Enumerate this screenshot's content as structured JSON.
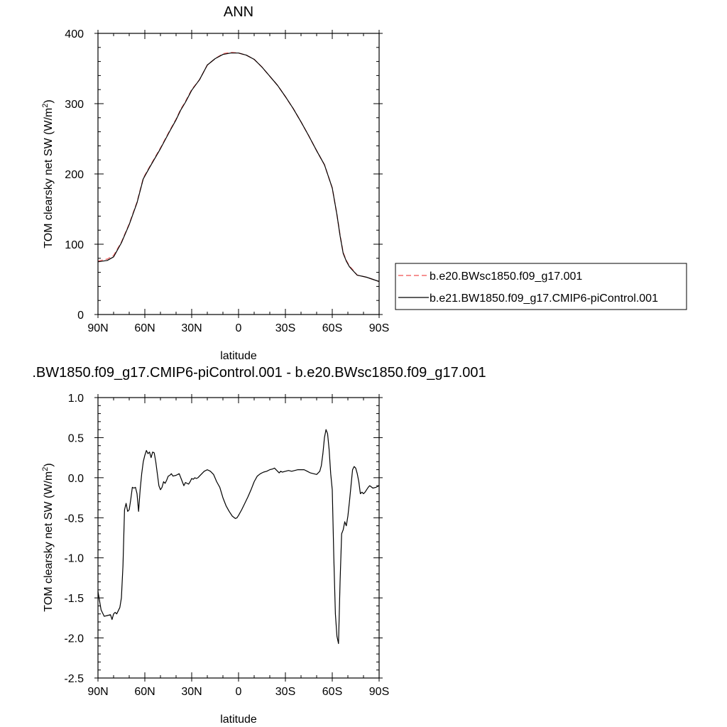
{
  "colors": {
    "series_a": "#f46d6d",
    "series_b": "#000000",
    "frame": "#000000"
  },
  "chart_data": [
    {
      "type": "line",
      "title": "ANN",
      "xlabel": "latitude",
      "ylabel_main": "TOM clearsky net SW (W/m",
      "ylabel_sup": "2",
      "ylabel_end": ")",
      "xlim": [
        90,
        -90
      ],
      "ylim": [
        0,
        400
      ],
      "x_ticks": [
        90,
        60,
        30,
        0,
        -30,
        -60,
        -90
      ],
      "x_tick_labels": [
        "90N",
        "60N",
        "30N",
        "0",
        "30S",
        "60S",
        "90S"
      ],
      "y_ticks": [
        0,
        100,
        200,
        300,
        400
      ],
      "y_tick_labels": [
        "0",
        "100",
        "200",
        "300",
        "400"
      ],
      "legend_position": "right",
      "series": [
        {
          "name": "b.e20.BWsc1850.f09_g17.001",
          "style": "dashed",
          "x": [
            90,
            84,
            80,
            75,
            70,
            65,
            61,
            57,
            50,
            44,
            40,
            37,
            34,
            30,
            25,
            20,
            15,
            10,
            5,
            0,
            -5,
            -10,
            -15,
            -20,
            -25,
            -30,
            -35,
            -40,
            -45,
            -50,
            -55,
            -60,
            -63,
            -65,
            -67,
            -69,
            -71,
            -73,
            -76,
            -80,
            -82,
            -86,
            -90
          ],
          "y": [
            76,
            79,
            84,
            103,
            129,
            160,
            194,
            210,
            237,
            262,
            278,
            292,
            303,
            320,
            334,
            355,
            364,
            371,
            373,
            372,
            369,
            363,
            352,
            339,
            326,
            310,
            293,
            274,
            254,
            233,
            213,
            180,
            142,
            113,
            88,
            77,
            69,
            64,
            56,
            54,
            53,
            50,
            47
          ]
        },
        {
          "name": "b.e21.BW1850.f09_g17.CMIP6-piControl.001",
          "style": "solid",
          "x": [
            90,
            84,
            80,
            75,
            70,
            65,
            61,
            57,
            50,
            44,
            40,
            37,
            34,
            30,
            25,
            20,
            15,
            10,
            5,
            0,
            -5,
            -10,
            -15,
            -20,
            -25,
            -30,
            -35,
            -40,
            -45,
            -50,
            -55,
            -60,
            -63,
            -65,
            -67,
            -69,
            -71,
            -73,
            -76,
            -80,
            -82,
            -86,
            -90
          ],
          "y": [
            75,
            77,
            82,
            102,
            128,
            159,
            193,
            209,
            236,
            261,
            277,
            291,
            302,
            319,
            334,
            355,
            364,
            370,
            372,
            372,
            369,
            363,
            352,
            339,
            326,
            310,
            293,
            274,
            254,
            233,
            213,
            180,
            142,
            112,
            87,
            76,
            68,
            63,
            56,
            54,
            53,
            50,
            47
          ]
        }
      ]
    },
    {
      "type": "line",
      "title": ".BW1850.f09_g17.CMIP6-piControl.001 - b.e20.BWsc1850.f09_g17.001",
      "xlabel": "latitude",
      "ylabel_main": "TOM clearsky net SW (W/m",
      "ylabel_sup": "2",
      "ylabel_end": ")",
      "xlim": [
        90,
        -90
      ],
      "ylim": [
        -2.5,
        1.0
      ],
      "x_ticks": [
        90,
        60,
        30,
        0,
        -30,
        -60,
        -90
      ],
      "x_tick_labels": [
        "90N",
        "60N",
        "30N",
        "0",
        "30S",
        "60S",
        "90S"
      ],
      "y_ticks": [
        -2.5,
        -2.0,
        -1.5,
        -1.0,
        -0.5,
        0.0,
        0.5,
        1.0
      ],
      "y_tick_labels": [
        "-2.5",
        "-2.0",
        "-1.5",
        "-1.0",
        "-0.5",
        "0.0",
        "0.5",
        "1.0"
      ],
      "series": [
        {
          "style": "solid",
          "x": [
            90,
            88,
            86,
            84,
            82,
            81,
            80,
            79,
            78,
            77,
            76,
            75,
            74,
            73,
            72,
            71,
            70,
            69,
            68,
            67,
            66,
            65,
            64,
            63,
            62,
            61,
            60,
            59,
            58,
            57,
            56,
            55,
            54,
            53,
            52,
            51,
            50,
            49,
            48,
            47,
            46,
            45,
            44,
            43,
            42,
            40,
            38,
            36,
            35,
            34,
            32,
            31,
            30,
            29,
            28,
            27,
            26,
            25,
            24,
            22,
            20,
            18,
            16,
            14,
            12,
            10,
            8,
            6,
            4,
            2,
            1,
            0,
            -2,
            -4,
            -6,
            -8,
            -10,
            -12,
            -14,
            -16,
            -18,
            -20,
            -22,
            -23,
            -24,
            -25,
            -26,
            -27,
            -28,
            -30,
            -32,
            -34,
            -36,
            -38,
            -40,
            -42,
            -44,
            -46,
            -48,
            -50,
            -52,
            -53,
            -54,
            -55,
            -56,
            -57,
            -58,
            -59,
            -60,
            -61,
            -62,
            -63,
            -64,
            -65,
            -66,
            -67,
            -68,
            -69,
            -70,
            -71,
            -72,
            -73,
            -74,
            -75,
            -76,
            -77,
            -78,
            -79,
            -80,
            -81,
            -82,
            -83,
            -84,
            -86,
            -88,
            -90
          ],
          "y": [
            -1.42,
            -1.65,
            -1.73,
            -1.72,
            -1.71,
            -1.77,
            -1.7,
            -1.68,
            -1.7,
            -1.66,
            -1.62,
            -1.5,
            -1.1,
            -0.4,
            -0.32,
            -0.42,
            -0.4,
            -0.27,
            -0.12,
            -0.13,
            -0.12,
            -0.2,
            -0.42,
            -0.15,
            0.05,
            0.2,
            0.28,
            0.34,
            0.3,
            0.32,
            0.25,
            0.32,
            0.31,
            0.2,
            0.05,
            -0.1,
            -0.15,
            -0.12,
            -0.05,
            -0.07,
            -0.03,
            0.02,
            0.03,
            0.05,
            0.02,
            0.03,
            0.05,
            -0.05,
            -0.1,
            -0.06,
            -0.08,
            -0.05,
            -0.01,
            -0.02,
            0.0,
            -0.01,
            0.0,
            0.02,
            0.04,
            0.08,
            0.1,
            0.08,
            0.04,
            -0.05,
            -0.12,
            -0.25,
            -0.35,
            -0.42,
            -0.48,
            -0.51,
            -0.5,
            -0.47,
            -0.4,
            -0.32,
            -0.24,
            -0.15,
            -0.05,
            0.02,
            0.05,
            0.07,
            0.08,
            0.1,
            0.11,
            0.12,
            0.1,
            0.08,
            0.06,
            0.08,
            0.07,
            0.08,
            0.09,
            0.08,
            0.09,
            0.1,
            0.1,
            0.1,
            0.08,
            0.06,
            0.05,
            0.04,
            0.08,
            0.15,
            0.3,
            0.5,
            0.6,
            0.55,
            0.35,
            0.05,
            -0.15,
            -1.0,
            -1.7,
            -1.98,
            -2.07,
            -1.3,
            -0.7,
            -0.65,
            -0.55,
            -0.6,
            -0.48,
            -0.3,
            -0.1,
            0.1,
            0.14,
            0.12,
            0.05,
            -0.05,
            -0.2,
            -0.18,
            -0.2,
            -0.18,
            -0.15,
            -0.12,
            -0.1,
            -0.13,
            -0.12,
            -0.1
          ]
        }
      ]
    }
  ]
}
